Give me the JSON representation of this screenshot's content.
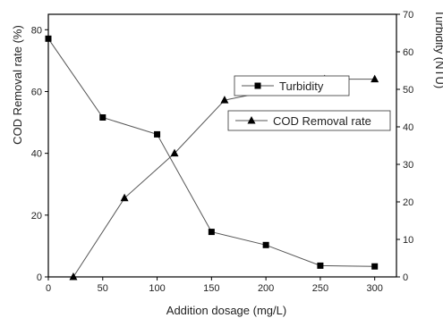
{
  "chart_data": {
    "type": "line",
    "title": "",
    "xlabel": "Addition dosage (mg/L)",
    "ylabel_left": "COD Removal rate (%)",
    "ylabel_right": "Turbidity (NTU)",
    "xlim": [
      0,
      320
    ],
    "ylim_left": [
      0,
      85
    ],
    "ylim_right": [
      0,
      70
    ],
    "x_ticks": [
      0,
      50,
      100,
      150,
      200,
      250,
      300
    ],
    "y_ticks_left": [
      0,
      20,
      40,
      60,
      80
    ],
    "y_ticks_right": [
      0,
      10,
      20,
      30,
      40,
      50,
      60,
      70
    ],
    "grid": false,
    "series": [
      {
        "name": "Turbidity",
        "axis": "right",
        "marker": "square",
        "x": [
          0,
          50,
          100,
          150,
          200,
          250,
          300
        ],
        "y": [
          63.5,
          42.5,
          38.0,
          12.0,
          8.5,
          3.0,
          2.8
        ]
      },
      {
        "name": "COD Removal rate",
        "axis": "left",
        "marker": "triangle",
        "x": [
          23,
          70,
          116,
          162,
          208,
          254,
          300
        ],
        "y": [
          0,
          25.5,
          40.0,
          57.2,
          60.5,
          64.0,
          64.0
        ]
      }
    ],
    "legend": {
      "placement": "center-right",
      "separate_boxes": true
    }
  }
}
